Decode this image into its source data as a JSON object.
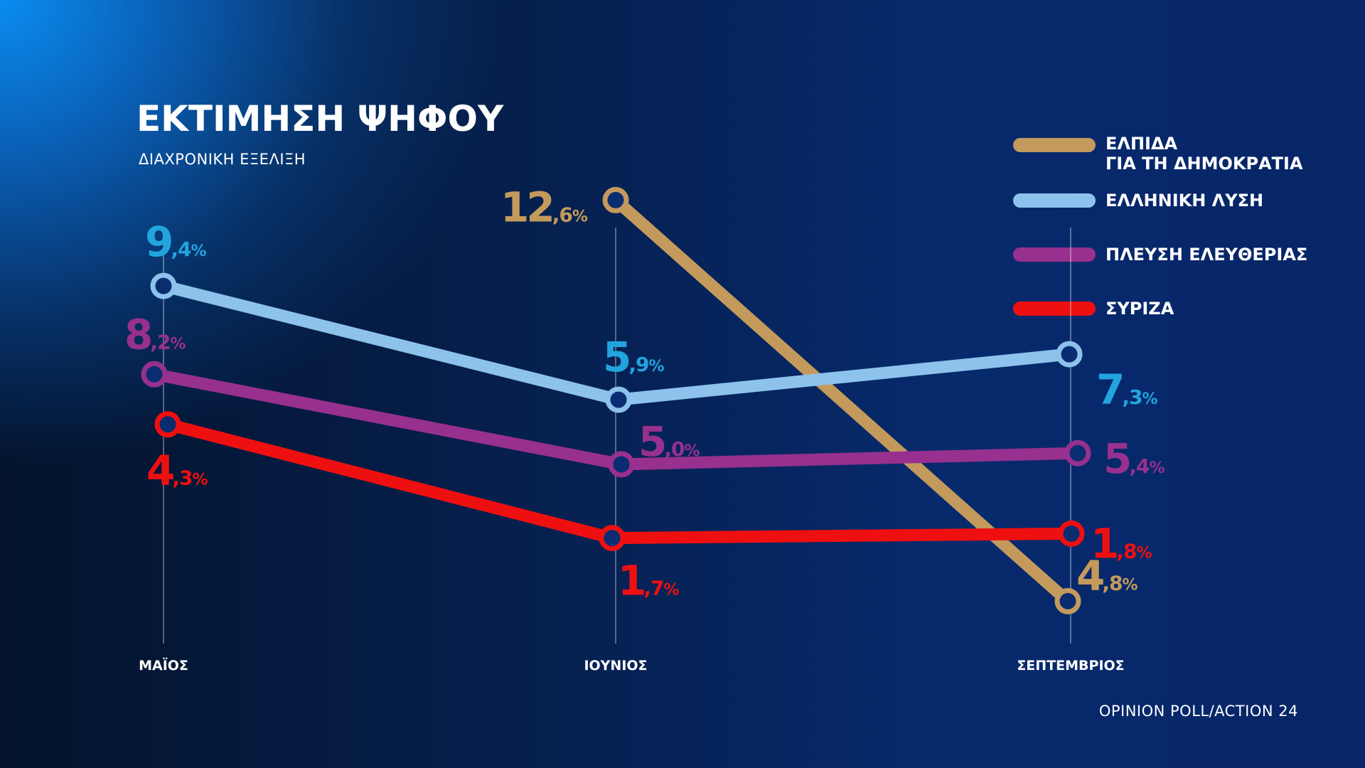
{
  "header": {
    "title": "ΕΚΤΙΜΗΣΗ ΨΗΦΟΥ",
    "subtitle": "ΔΙΑΧΡΟΝΙΚΗ ΕΞΕΛΙΞΗ"
  },
  "source": "OPINION POLL/ACTION 24",
  "colors": {
    "background": "#062466",
    "elpida": "#c49a5c",
    "elliniki_lysi": "#8cc2ec",
    "elliniki_lysi_label": "#22a4df",
    "plefsi": "#97308e",
    "syriza": "#ee1010",
    "marker_fill": "#0a2d72"
  },
  "chart_data": {
    "type": "line",
    "title": "ΕΚΤΙΜΗΣΗ ΨΗΦΟΥ",
    "subtitle": "ΔΙΑΧΡΟΝΙΚΗ ΕΞΕΛΙΞΗ",
    "categories": [
      "ΜΑΪΟΣ",
      "ΙΟΥΝΙΟΣ",
      "ΣΕΠΤΕΜΒΡΙΟΣ"
    ],
    "legend_position": "top-right",
    "grid": false,
    "series": [
      {
        "name": "ΕΛΠΙΔΑ\nΓΙΑ ΤΗ ΔΗΜΟΚΡΑΤΙΑ",
        "color": "#c49a5c",
        "label_color": "#c49a5c",
        "values": [
          null,
          12.6,
          4.8
        ],
        "labels": [
          null,
          "12,6%",
          "4,8%"
        ]
      },
      {
        "name": "ΕΛΛΗΝΙΚΗ ΛΥΣΗ",
        "color": "#8cc2ec",
        "label_color": "#22a4df",
        "values": [
          9.4,
          5.9,
          7.3
        ],
        "labels": [
          "9,4%",
          "5,9%",
          "7,3%"
        ]
      },
      {
        "name": "ΠΛΕΥΣΗ ΕΛΕΥΘΕΡΙΑΣ",
        "color": "#97308e",
        "label_color": "#97308e",
        "values": [
          8.2,
          5.0,
          5.4
        ],
        "labels": [
          "8,2%",
          "5,0%",
          "5,4%"
        ]
      },
      {
        "name": "ΣΥΡΙΖΑ",
        "color": "#ee1010",
        "label_color": "#ee1010",
        "values": [
          4.3,
          1.7,
          1.8
        ],
        "labels": [
          "4,3%",
          "1,7%",
          "1,8%"
        ]
      }
    ]
  }
}
